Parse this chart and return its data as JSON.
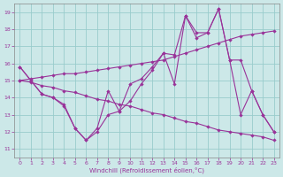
{
  "bg_color": "#cce8e8",
  "line_color": "#993399",
  "grid_color": "#99cccc",
  "xlabel": "Windchill (Refroidissement éolien,°C)",
  "xlim": [
    -0.5,
    23.5
  ],
  "ylim": [
    10.5,
    19.5
  ],
  "yticks": [
    11,
    12,
    13,
    14,
    15,
    16,
    17,
    18,
    19
  ],
  "xticks": [
    0,
    1,
    2,
    3,
    4,
    5,
    6,
    7,
    8,
    9,
    10,
    11,
    12,
    13,
    14,
    15,
    16,
    17,
    18,
    19,
    20,
    21,
    22,
    23
  ],
  "line1_x": [
    0,
    1,
    2,
    3,
    4,
    5,
    6,
    7,
    8,
    9,
    10,
    11,
    12,
    13,
    14,
    15,
    16,
    17,
    18,
    19,
    20,
    21,
    22,
    23
  ],
  "line1_y": [
    15.8,
    15.0,
    14.2,
    14.0,
    13.6,
    12.2,
    11.5,
    12.0,
    13.0,
    13.2,
    13.8,
    14.8,
    15.6,
    16.6,
    16.5,
    18.8,
    17.5,
    17.8,
    19.2,
    16.2,
    13.0,
    14.4,
    13.0,
    12.0
  ],
  "line2_x": [
    0,
    1,
    2,
    3,
    4,
    5,
    6,
    7,
    8,
    9,
    10,
    11,
    12,
    13,
    14,
    15,
    16,
    17,
    18,
    19,
    20,
    21,
    22,
    23
  ],
  "line2_y": [
    15.0,
    15.1,
    15.2,
    15.3,
    15.4,
    15.4,
    15.5,
    15.6,
    15.7,
    15.8,
    15.9,
    16.0,
    16.1,
    16.2,
    16.4,
    16.6,
    16.8,
    17.0,
    17.2,
    17.4,
    17.6,
    17.7,
    17.8,
    17.9
  ],
  "line3_x": [
    0,
    1,
    2,
    3,
    4,
    5,
    6,
    7,
    8,
    9,
    10,
    11,
    12,
    13,
    14,
    15,
    16,
    17,
    18,
    19,
    20,
    21,
    22,
    23
  ],
  "line3_y": [
    15.0,
    14.9,
    14.7,
    14.6,
    14.4,
    14.3,
    14.1,
    13.9,
    13.8,
    13.6,
    13.5,
    13.3,
    13.1,
    13.0,
    12.8,
    12.6,
    12.5,
    12.3,
    12.1,
    12.0,
    11.9,
    11.8,
    11.7,
    11.5
  ],
  "line4_x": [
    0,
    1,
    2,
    3,
    4,
    5,
    6,
    7,
    8,
    9,
    10,
    11,
    12,
    13,
    14,
    15,
    16,
    17,
    18,
    19,
    20,
    21,
    22,
    23
  ],
  "line4_y": [
    15.8,
    15.0,
    14.2,
    14.0,
    13.5,
    12.2,
    11.5,
    12.2,
    14.4,
    13.2,
    14.8,
    15.1,
    15.8,
    16.6,
    14.8,
    18.8,
    17.8,
    17.8,
    19.2,
    16.2,
    16.2,
    14.4,
    13.0,
    12.0
  ]
}
